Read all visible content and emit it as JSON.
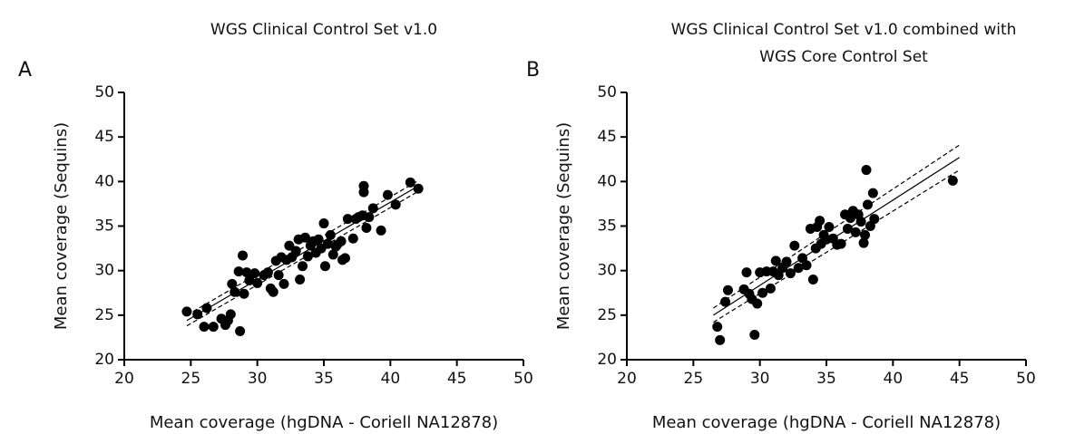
{
  "chart_data": [
    {
      "type": "scatter",
      "panel_label": "A",
      "title": [
        "WGS Clinical Control Set v1.0"
      ],
      "x_label": "Mean coverage (hgDNA - Coriell NA12878)",
      "y_label": "Mean coverage (Sequins)",
      "xlim": [
        20,
        50
      ],
      "ylim": [
        20,
        50
      ],
      "xticks": [
        20,
        25,
        30,
        35,
        40,
        45,
        50
      ],
      "yticks": [
        20,
        25,
        30,
        35,
        40,
        45,
        50
      ],
      "color": "#000000",
      "grid": false,
      "x": [
        24.7,
        25.5,
        26,
        26.2,
        26.7,
        27.3,
        27.6,
        27.8,
        28,
        28.1,
        28.3,
        28.6,
        28.7,
        28.9,
        29,
        29.2,
        29.4,
        29.8,
        30,
        30.5,
        30.8,
        31,
        31.2,
        31.4,
        31.6,
        31.8,
        32,
        32.2,
        32.4,
        32.6,
        32.9,
        33.1,
        33.2,
        33.4,
        33.6,
        33.8,
        34,
        34.2,
        34.4,
        34.6,
        34.8,
        35,
        35.1,
        35.3,
        35.5,
        35.7,
        35.9,
        36,
        36.3,
        36.4,
        36.6,
        36.8,
        37.2,
        37.4,
        37.6,
        37.9,
        38,
        38,
        38.2,
        38.4,
        38.7,
        39.3,
        39.8,
        40.4,
        41.5,
        42.1
      ],
      "y": [
        25.4,
        25.1,
        23.7,
        25.8,
        23.7,
        24.6,
        23.9,
        24.4,
        25.1,
        28.5,
        27.6,
        29.9,
        23.2,
        31.7,
        27.4,
        29.8,
        28.9,
        29.7,
        28.6,
        29.5,
        29.8,
        28,
        27.6,
        31.1,
        29.5,
        31.5,
        28.5,
        31.2,
        32.8,
        31.5,
        32.2,
        33.5,
        29,
        30.5,
        33.7,
        31.6,
        32.8,
        33.3,
        32,
        33.5,
        32.5,
        35.3,
        30.5,
        33,
        34,
        31.8,
        32.7,
        32.9,
        33.3,
        31.2,
        31.4,
        35.8,
        33.6,
        35.8,
        36,
        36.2,
        39.5,
        38.8,
        34.8,
        36,
        37,
        34.5,
        38.5,
        37.4,
        39.9,
        39.2
      ],
      "fit": {
        "x": [
          24.7,
          42.1
        ],
        "y": [
          24.4,
          39.5
        ]
      },
      "ci_upper": {
        "x": [
          24.7,
          42.1
        ],
        "y": [
          25,
          40.1
        ]
      },
      "ci_lower": {
        "x": [
          24.7,
          42.1
        ],
        "y": [
          23.8,
          38.9
        ]
      }
    },
    {
      "type": "scatter",
      "panel_label": "B",
      "title": [
        "WGS Clinical Control Set v1.0 combined with",
        "WGS Core Control Set"
      ],
      "x_label": "Mean coverage (hgDNA - Coriell NA12878)",
      "y_label": "Mean coverage (Sequins)",
      "xlim": [
        20,
        50
      ],
      "ylim": [
        20,
        50
      ],
      "xticks": [
        20,
        25,
        30,
        35,
        40,
        45,
        50
      ],
      "yticks": [
        20,
        25,
        30,
        35,
        40,
        45,
        50
      ],
      "color": "#000000",
      "grid": false,
      "x": [
        26.8,
        27,
        27.4,
        27.6,
        28.8,
        29,
        29.2,
        29.4,
        29.6,
        29.8,
        30,
        30.2,
        30.5,
        30.8,
        31,
        31.2,
        31.4,
        31.7,
        32,
        32.3,
        32.6,
        32.9,
        33.2,
        33.5,
        33.8,
        34,
        34.2,
        34.3,
        34.5,
        34.6,
        34.8,
        35,
        35.2,
        35.5,
        35.8,
        36.1,
        36.4,
        36.6,
        36.8,
        37,
        37.2,
        37.4,
        37.6,
        37.8,
        37.9,
        38,
        38.1,
        38.3,
        38.5,
        38.6,
        44.5
      ],
      "y": [
        23.7,
        22.2,
        26.5,
        27.8,
        27.9,
        29.8,
        27.4,
        26.8,
        22.8,
        26.3,
        29.8,
        27.5,
        29.9,
        28,
        29.9,
        31.1,
        29.5,
        30.3,
        31,
        29.7,
        32.8,
        30.3,
        31.4,
        30.6,
        34.7,
        29,
        32.5,
        34.9,
        35.6,
        33,
        34,
        33.5,
        34.9,
        33.6,
        32.9,
        33,
        36.3,
        34.7,
        35.9,
        36.7,
        34.3,
        36.3,
        35.5,
        33.1,
        34,
        41.3,
        37.4,
        35,
        38.7,
        35.8,
        40.1
      ],
      "fit": {
        "x": [
          26.5,
          45
        ],
        "y": [
          25,
          42.7
        ]
      },
      "ci_upper": {
        "x": [
          26.5,
          45
        ],
        "y": [
          25.8,
          44.1
        ]
      },
      "ci_lower": {
        "x": [
          26.5,
          45
        ],
        "y": [
          24.2,
          41.3
        ]
      }
    }
  ]
}
